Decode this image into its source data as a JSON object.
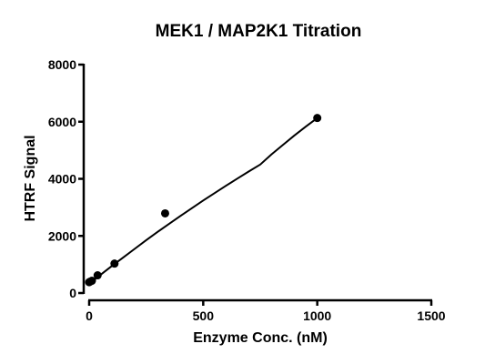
{
  "chart_data": {
    "type": "scatter",
    "title": "MEK1 / MAP2K1 Titration",
    "xlabel": "Enzyme Conc. (nM)",
    "ylabel": "HTRF Signal",
    "xlim": [
      0,
      1500
    ],
    "ylim": [
      0,
      8000
    ],
    "x_ticks": [
      0,
      500,
      1000,
      1500
    ],
    "y_ticks": [
      0,
      2000,
      4000,
      6000,
      8000
    ],
    "grid": false,
    "legend": "none",
    "series": [
      {
        "points": [
          {
            "x": 0,
            "y": 380
          },
          {
            "x": 4,
            "y": 400
          },
          {
            "x": 12,
            "y": 430
          },
          {
            "x": 37,
            "y": 620
          },
          {
            "x": 111,
            "y": 1030
          },
          {
            "x": 333,
            "y": 2790
          },
          {
            "x": 1000,
            "y": 6130
          }
        ],
        "fit_curve": [
          {
            "x": 0,
            "y": 330
          },
          {
            "x": 50,
            "y": 640
          },
          {
            "x": 100,
            "y": 950
          },
          {
            "x": 150,
            "y": 1250
          },
          {
            "x": 200,
            "y": 1550
          },
          {
            "x": 250,
            "y": 1850
          },
          {
            "x": 300,
            "y": 2140
          },
          {
            "x": 350,
            "y": 2420
          },
          {
            "x": 400,
            "y": 2700
          },
          {
            "x": 450,
            "y": 2970
          },
          {
            "x": 500,
            "y": 3240
          },
          {
            "x": 550,
            "y": 3500
          },
          {
            "x": 600,
            "y": 3760
          },
          {
            "x": 650,
            "y": 4010
          },
          {
            "x": 700,
            "y": 4260
          },
          {
            "x": 750,
            "y": 4500
          },
          {
            "x": 800,
            "y": 4860
          },
          {
            "x": 850,
            "y": 5190
          },
          {
            "x": 900,
            "y": 5520
          },
          {
            "x": 950,
            "y": 5830
          },
          {
            "x": 1000,
            "y": 6130
          }
        ]
      }
    ],
    "colors": {
      "marker": "#000000",
      "curve": "#000000",
      "axis": "#000000"
    }
  }
}
